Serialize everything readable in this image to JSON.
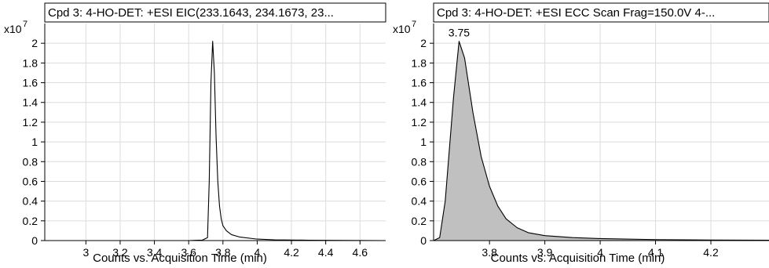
{
  "chart_data": [
    {
      "type": "line",
      "title": "Cpd 3: 4-HO-DET: +ESI EIC(233.1643, 234.1673, 23...",
      "xlabel": "Counts vs. Acquisition Time (min)",
      "y_multiplier": "x10",
      "y_exponent": "7",
      "xlim": [
        2.76,
        4.75
      ],
      "ylim": [
        0,
        2.2
      ],
      "xticks": [
        3,
        3.2,
        3.4,
        3.6,
        3.8,
        4,
        4.2,
        4.4,
        4.6
      ],
      "xtick_labels": [
        "3",
        "3.2",
        "3.4",
        "3.6",
        "3.8",
        "4",
        "4.2",
        "4.4",
        "4.6"
      ],
      "yticks": [
        0,
        0.2,
        0.4,
        0.6,
        0.8,
        1,
        1.2,
        1.4,
        1.6,
        1.8,
        2
      ],
      "ytick_labels": [
        "0",
        "0.2",
        "0.4",
        "0.6",
        "0.8",
        "1",
        "1.2",
        "1.4",
        "1.6",
        "1.8",
        "2"
      ],
      "grid": true,
      "filled": false,
      "series": [
        {
          "x": [
            2.76,
            3.6,
            3.68,
            3.71,
            3.72,
            3.73,
            3.74,
            3.75,
            3.76,
            3.77,
            3.78,
            3.79,
            3.8,
            3.82,
            3.85,
            3.9,
            4.0,
            4.1,
            4.3,
            4.75
          ],
          "y": [
            0.0,
            0.0,
            0.005,
            0.03,
            0.6,
            1.6,
            2.02,
            1.7,
            1.05,
            0.6,
            0.35,
            0.22,
            0.15,
            0.1,
            0.06,
            0.035,
            0.015,
            0.008,
            0.004,
            0.0
          ]
        }
      ]
    },
    {
      "type": "area",
      "title": "Cpd 3: 4-HO-DET: +ESI ECC Scan Frag=150.0V 4-...",
      "xlabel": "Counts vs. Acquisition Time (min)",
      "y_multiplier": "x10",
      "y_exponent": "7",
      "xlim": [
        3.699,
        4.305
      ],
      "ylim": [
        0,
        2.2
      ],
      "xticks": [
        3.8,
        3.9,
        4,
        4.1,
        4.2
      ],
      "xtick_labels": [
        "3.8",
        "3.9",
        "4",
        "4.1",
        "4.2"
      ],
      "yticks": [
        0,
        0.2,
        0.4,
        0.6,
        0.8,
        1,
        1.2,
        1.4,
        1.6,
        1.8,
        2
      ],
      "ytick_labels": [
        "0",
        "0.2",
        "0.4",
        "0.6",
        "0.8",
        "1",
        "1.2",
        "1.4",
        "1.6",
        "1.8",
        "2"
      ],
      "grid": true,
      "filled": true,
      "fill_color": "#c0c0c0",
      "annotations": [
        {
          "text": "3.75",
          "x": 3.745,
          "y": 2.02
        }
      ],
      "series": [
        {
          "x": [
            3.699,
            3.71,
            3.72,
            3.735,
            3.745,
            3.755,
            3.77,
            3.785,
            3.8,
            3.815,
            3.83,
            3.85,
            3.87,
            3.9,
            3.95,
            4.0,
            4.1,
            4.2,
            4.305
          ],
          "y": [
            0.0,
            0.03,
            0.4,
            1.45,
            2.02,
            1.85,
            1.3,
            0.85,
            0.55,
            0.35,
            0.22,
            0.13,
            0.08,
            0.05,
            0.03,
            0.02,
            0.01,
            0.006,
            0.004
          ]
        }
      ]
    }
  ]
}
